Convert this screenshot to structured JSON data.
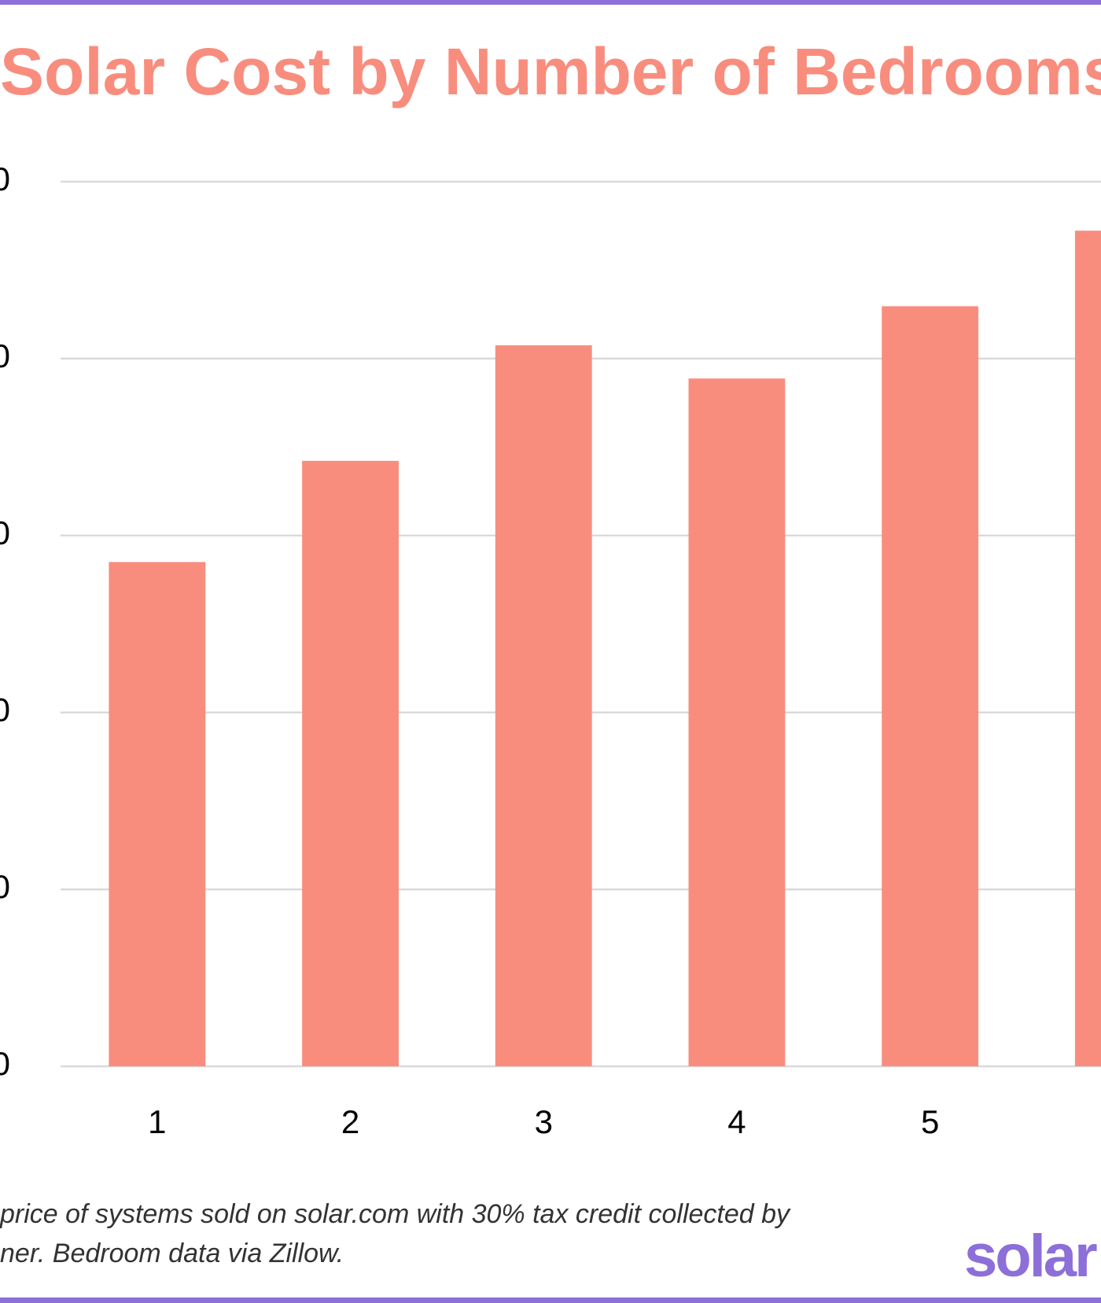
{
  "chart_data": {
    "type": "bar",
    "title": "Solar Cost by Number of Bedrooms",
    "categories": [
      "1",
      "2",
      "3",
      "4",
      "5",
      null
    ],
    "values": [
      14250,
      17110,
      20375,
      19437,
      21480,
      23615
    ],
    "color": "#f88d7e",
    "ylim": [
      0,
      25000
    ],
    "yticks": [
      {
        "value": 0,
        "label": "0"
      },
      {
        "value": 5000,
        "label": "0"
      },
      {
        "value": 10000,
        "label": "0"
      },
      {
        "value": 15000,
        "label": "0"
      },
      {
        "value": 20000,
        "label": "0"
      },
      {
        "value": 25000,
        "label": "0"
      }
    ],
    "grid": true,
    "footnote": [
      "price of systems sold on solar.com with 30% tax credit collected by",
      "ner. Bedroom data via Zillow."
    ],
    "logo": "solar"
  }
}
